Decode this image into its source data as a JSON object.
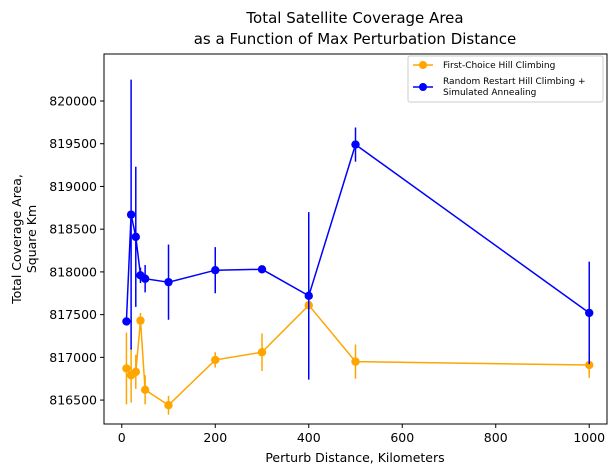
{
  "chart_data": {
    "type": "line",
    "title": [
      "Total Satellite Coverage Area",
      "as a Function of Max Perturbation Distance"
    ],
    "xlabel": "Perturb Distance, Kilometers",
    "ylabel": [
      "Total Coverage Area,",
      "Square Km"
    ],
    "xlim": [
      -38,
      1038
    ],
    "ylim": [
      816220,
      820550
    ],
    "xticks": [
      0,
      200,
      400,
      600,
      800,
      1000
    ],
    "yticks": [
      816500,
      817000,
      817500,
      818000,
      818500,
      819000,
      819500,
      820000
    ],
    "grid": false,
    "legend_position": "top-right",
    "series": [
      {
        "name": [
          "First-Choice Hill Climbing"
        ],
        "color": "#ffa500",
        "points": [
          {
            "x": 10,
            "y": 816870,
            "err": 420
          },
          {
            "x": 20,
            "y": 816790,
            "err": 320
          },
          {
            "x": 30,
            "y": 816830,
            "err": 200
          },
          {
            "x": 40,
            "y": 817430,
            "err": 90
          },
          {
            "x": 50,
            "y": 816620,
            "err": 170
          },
          {
            "x": 100,
            "y": 816440,
            "err": 110
          },
          {
            "x": 200,
            "y": 816970,
            "err": 90
          },
          {
            "x": 300,
            "y": 817060,
            "err": 220
          },
          {
            "x": 400,
            "y": 817610,
            "err": 60
          },
          {
            "x": 500,
            "y": 816950,
            "err": 200
          },
          {
            "x": 1000,
            "y": 816910,
            "err": 150
          }
        ]
      },
      {
        "name": [
          "Random Restart Hill Climbing +",
          "Simulated Annealing"
        ],
        "color": "#0000ff",
        "points": [
          {
            "x": 10,
            "y": 817420,
            "err": 0
          },
          {
            "x": 20,
            "y": 818670,
            "err": 1580
          },
          {
            "x": 30,
            "y": 818410,
            "err": 820
          },
          {
            "x": 40,
            "y": 817960,
            "err": 90
          },
          {
            "x": 50,
            "y": 817920,
            "err": 160
          },
          {
            "x": 100,
            "y": 817880,
            "err": 440
          },
          {
            "x": 200,
            "y": 818020,
            "err": 270
          },
          {
            "x": 300,
            "y": 818030,
            "err": 40
          },
          {
            "x": 400,
            "y": 817720,
            "err": 980
          },
          {
            "x": 500,
            "y": 819490,
            "err": 200
          },
          {
            "x": 1000,
            "y": 817520,
            "err": 600
          }
        ]
      }
    ]
  }
}
